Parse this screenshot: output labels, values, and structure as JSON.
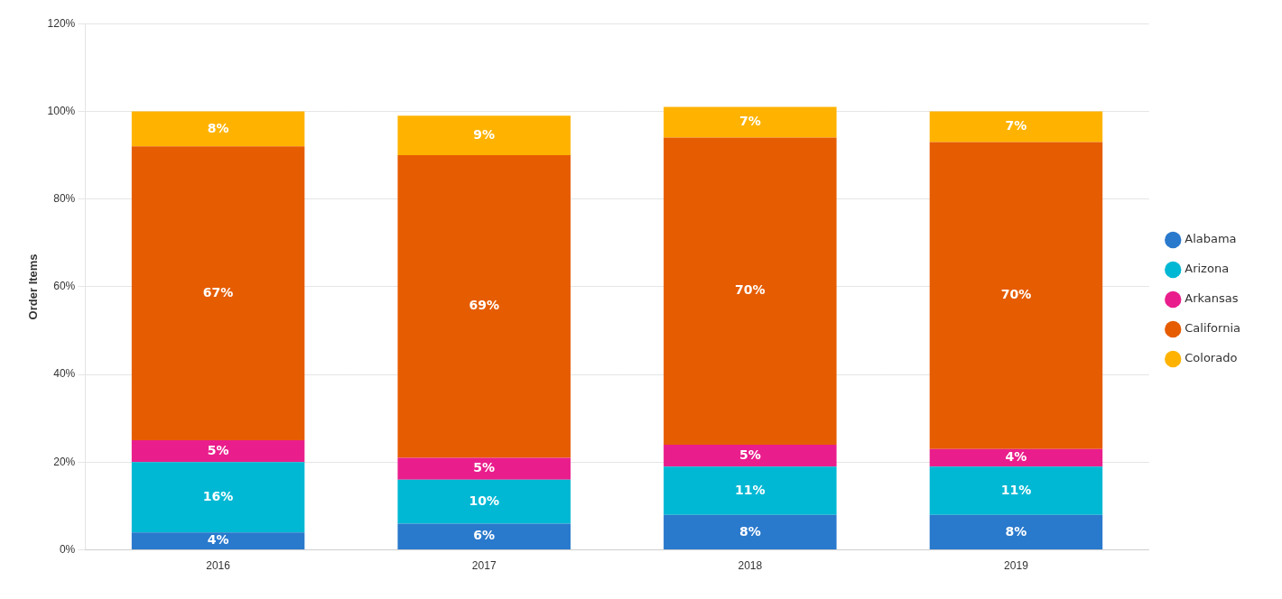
{
  "chart_data": {
    "type": "bar",
    "stacked": true,
    "categories": [
      "2016",
      "2017",
      "2018",
      "2019"
    ],
    "series": [
      {
        "name": "Alabama",
        "color": "#2979cc",
        "values": [
          4,
          6,
          8,
          8
        ],
        "value_labels": [
          "4%",
          "6%",
          "8%",
          "8%"
        ]
      },
      {
        "name": "Arizona",
        "color": "#00b8d4",
        "values": [
          16,
          10,
          11,
          11
        ],
        "value_labels": [
          "16%",
          "10%",
          "11%",
          "11%"
        ]
      },
      {
        "name": "Arkansas",
        "color": "#e91e8c",
        "values": [
          5,
          5,
          5,
          4
        ],
        "value_labels": [
          "5%",
          "5%",
          "5%",
          "4%"
        ]
      },
      {
        "name": "California",
        "color": "#e65c00",
        "values": [
          67,
          69,
          70,
          70
        ],
        "value_labels": [
          "67%",
          "69%",
          "70%",
          "70%"
        ]
      },
      {
        "name": "Colorado",
        "color": "#ffb300",
        "values": [
          8,
          9,
          7,
          7
        ],
        "value_labels": [
          "8%",
          "9%",
          "7%",
          "7%"
        ]
      }
    ],
    "ylabel": "Order Items",
    "ylim": [
      0,
      120
    ],
    "yticks": [
      {
        "value": 0,
        "label": "0%"
      },
      {
        "value": 20,
        "label": "20%"
      },
      {
        "value": 40,
        "label": "40%"
      },
      {
        "value": 60,
        "label": "60%"
      },
      {
        "value": 80,
        "label": "80%"
      },
      {
        "value": 100,
        "label": "100%"
      },
      {
        "value": 120,
        "label": "120%"
      }
    ],
    "grid": true,
    "legend": "right",
    "data_labels": true
  }
}
